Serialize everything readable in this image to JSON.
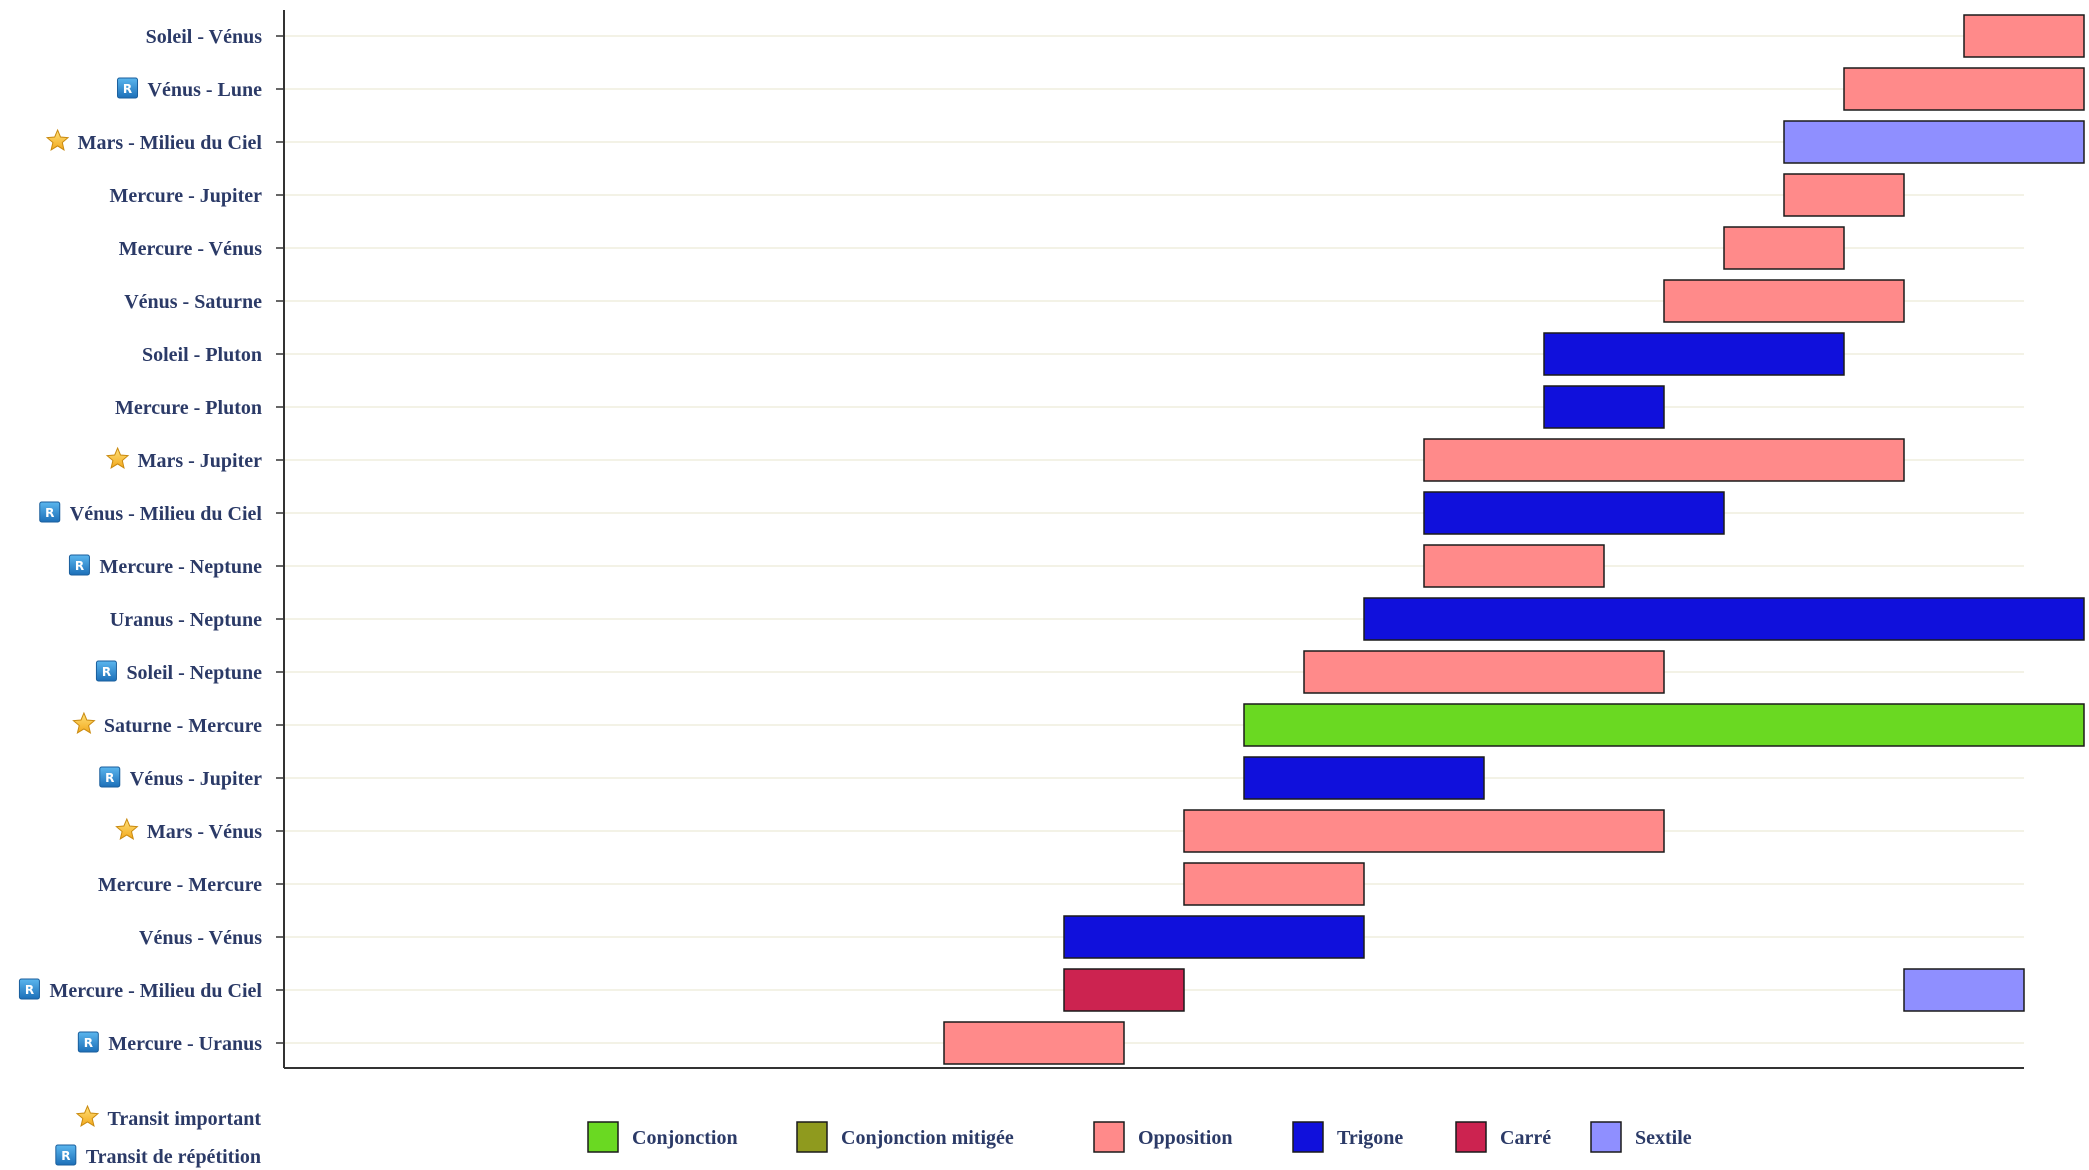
{
  "chart_data": {
    "type": "gantt",
    "title": "",
    "xlabel": "",
    "ylabel": "",
    "grid": true,
    "xlim": [
      0,
      30
    ],
    "aspect_colors": {
      "Conjonction": "#6ad922",
      "Conjonction mitigée": "#8f9a1e",
      "Opposition": "#ff8a8a",
      "Trigone": "#1010dc",
      "Carré": "#cc2350",
      "Sextile": "#8f8fff"
    },
    "rows": [
      {
        "label": "Soleil - Vénus",
        "marker": "",
        "bars": [
          {
            "start": 28.0,
            "end": 30.0,
            "aspect": "Opposition"
          }
        ]
      },
      {
        "label": "Vénus - Lune",
        "marker": "repetition",
        "bars": [
          {
            "start": 26.0,
            "end": 30.0,
            "aspect": "Opposition"
          }
        ]
      },
      {
        "label": "Mars - Milieu du Ciel",
        "marker": "important",
        "bars": [
          {
            "start": 25.0,
            "end": 30.0,
            "aspect": "Sextile"
          }
        ]
      },
      {
        "label": "Mercure - Jupiter",
        "marker": "",
        "bars": [
          {
            "start": 25.0,
            "end": 27.0,
            "aspect": "Opposition"
          }
        ]
      },
      {
        "label": "Mercure - Vénus",
        "marker": "",
        "bars": [
          {
            "start": 24.0,
            "end": 26.0,
            "aspect": "Opposition"
          }
        ]
      },
      {
        "label": "Vénus - Saturne",
        "marker": "",
        "bars": [
          {
            "start": 23.0,
            "end": 27.0,
            "aspect": "Opposition"
          }
        ]
      },
      {
        "label": "Soleil - Pluton",
        "marker": "",
        "bars": [
          {
            "start": 21.0,
            "end": 26.0,
            "aspect": "Trigone"
          }
        ]
      },
      {
        "label": "Mercure - Pluton",
        "marker": "",
        "bars": [
          {
            "start": 21.0,
            "end": 23.0,
            "aspect": "Trigone"
          }
        ]
      },
      {
        "label": "Mars - Jupiter",
        "marker": "important",
        "bars": [
          {
            "start": 19.0,
            "end": 27.0,
            "aspect": "Opposition"
          }
        ]
      },
      {
        "label": "Vénus - Milieu du Ciel",
        "marker": "repetition",
        "bars": [
          {
            "start": 19.0,
            "end": 24.0,
            "aspect": "Trigone"
          }
        ]
      },
      {
        "label": "Mercure - Neptune",
        "marker": "repetition",
        "bars": [
          {
            "start": 19.0,
            "end": 22.0,
            "aspect": "Opposition"
          }
        ]
      },
      {
        "label": "Uranus - Neptune",
        "marker": "",
        "bars": [
          {
            "start": 18.0,
            "end": 30.0,
            "aspect": "Trigone"
          }
        ]
      },
      {
        "label": "Soleil - Neptune",
        "marker": "repetition",
        "bars": [
          {
            "start": 17.0,
            "end": 23.0,
            "aspect": "Opposition"
          }
        ]
      },
      {
        "label": "Saturne - Mercure",
        "marker": "important",
        "bars": [
          {
            "start": 16.0,
            "end": 30.0,
            "aspect": "Conjonction"
          }
        ]
      },
      {
        "label": "Vénus - Jupiter",
        "marker": "repetition",
        "bars": [
          {
            "start": 16.0,
            "end": 20.0,
            "aspect": "Trigone"
          }
        ]
      },
      {
        "label": "Mars - Vénus",
        "marker": "important",
        "bars": [
          {
            "start": 15.0,
            "end": 23.0,
            "aspect": "Opposition"
          }
        ]
      },
      {
        "label": "Mercure - Mercure",
        "marker": "",
        "bars": [
          {
            "start": 15.0,
            "end": 18.0,
            "aspect": "Opposition"
          }
        ]
      },
      {
        "label": "Vénus - Vénus",
        "marker": "",
        "bars": [
          {
            "start": 13.0,
            "end": 18.0,
            "aspect": "Trigone"
          }
        ]
      },
      {
        "label": "Mercure - Milieu du Ciel",
        "marker": "repetition",
        "bars": [
          {
            "start": 13.0,
            "end": 15.0,
            "aspect": "Carré"
          },
          {
            "start": 27.0,
            "end": 29.0,
            "aspect": "Sextile"
          }
        ]
      },
      {
        "label": "Mercure - Uranus",
        "marker": "repetition",
        "bars": [
          {
            "start": 11.0,
            "end": 14.0,
            "aspect": "Opposition"
          }
        ]
      }
    ],
    "legend": {
      "placement": "bottom",
      "entries": [
        "Conjonction",
        "Conjonction mitigée",
        "Opposition",
        "Trigone",
        "Carré",
        "Sextile"
      ]
    },
    "marker_legend": {
      "important": "Transit important",
      "repetition": "Transit de répétition"
    },
    "marker_glyphs": {
      "important": "star-icon",
      "repetition": "r-badge-icon"
    }
  }
}
